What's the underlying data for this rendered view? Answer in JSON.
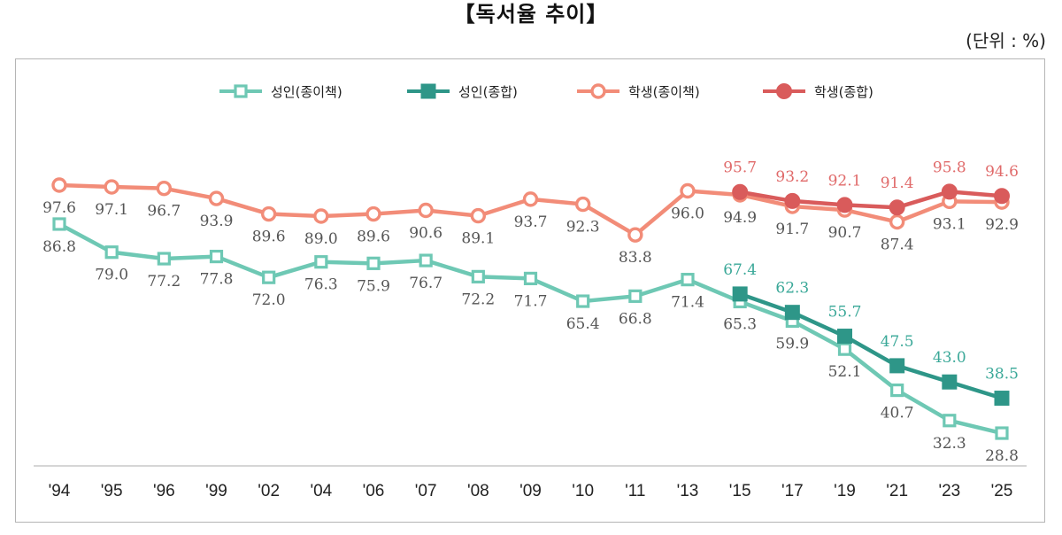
{
  "header": {
    "title": "【독서율 추이】",
    "unit": "(단위 : %)"
  },
  "chart_data": {
    "type": "line",
    "title": "【독서율 추이】",
    "unit_label": "(단위 : %)",
    "xlabel": "",
    "ylabel": "",
    "ylim": [
      20,
      113
    ],
    "grid": false,
    "legend_position": "top-center",
    "categories": [
      "'94",
      "'95",
      "'96",
      "'99",
      "'02",
      "'04",
      "'06",
      "'07",
      "'08",
      "'09",
      "'10",
      "'11",
      "'13",
      "'15",
      "'17",
      "'19",
      "'21",
      "'23",
      "'25"
    ],
    "series": [
      {
        "key": "adult_paper",
        "name": "성인(종이책)",
        "color": "#6ec8b4",
        "marker": "square-open",
        "label_color": "#555555",
        "label_position": "below",
        "values": [
          86.8,
          79.0,
          77.2,
          77.8,
          72.0,
          76.3,
          75.9,
          76.7,
          72.2,
          71.7,
          65.4,
          66.8,
          71.4,
          65.3,
          59.9,
          52.1,
          40.7,
          32.3,
          28.8
        ]
      },
      {
        "key": "adult_total",
        "name": "성인(종합)",
        "color": "#2e9688",
        "marker": "square-filled",
        "label_color": "#3aa898",
        "label_position": "above",
        "values": [
          null,
          null,
          null,
          null,
          null,
          null,
          null,
          null,
          null,
          null,
          null,
          null,
          null,
          67.4,
          62.3,
          55.7,
          47.5,
          43.0,
          38.5
        ]
      },
      {
        "key": "student_paper",
        "name": "학생(종이책)",
        "color": "#f28c78",
        "marker": "circle-open",
        "label_color": "#555555",
        "label_position": "below",
        "values": [
          97.6,
          97.1,
          96.7,
          93.9,
          89.6,
          89.0,
          89.6,
          90.6,
          89.1,
          93.7,
          92.3,
          83.8,
          96.0,
          94.9,
          91.7,
          90.7,
          87.4,
          93.1,
          92.9
        ]
      },
      {
        "key": "student_total",
        "name": "학생(종합)",
        "color": "#d95b5b",
        "marker": "circle-filled",
        "label_color": "#e06a6a",
        "label_position": "above",
        "values": [
          null,
          null,
          null,
          null,
          null,
          null,
          null,
          null,
          null,
          null,
          null,
          null,
          null,
          95.7,
          93.2,
          92.1,
          91.4,
          95.8,
          94.6
        ]
      }
    ]
  }
}
